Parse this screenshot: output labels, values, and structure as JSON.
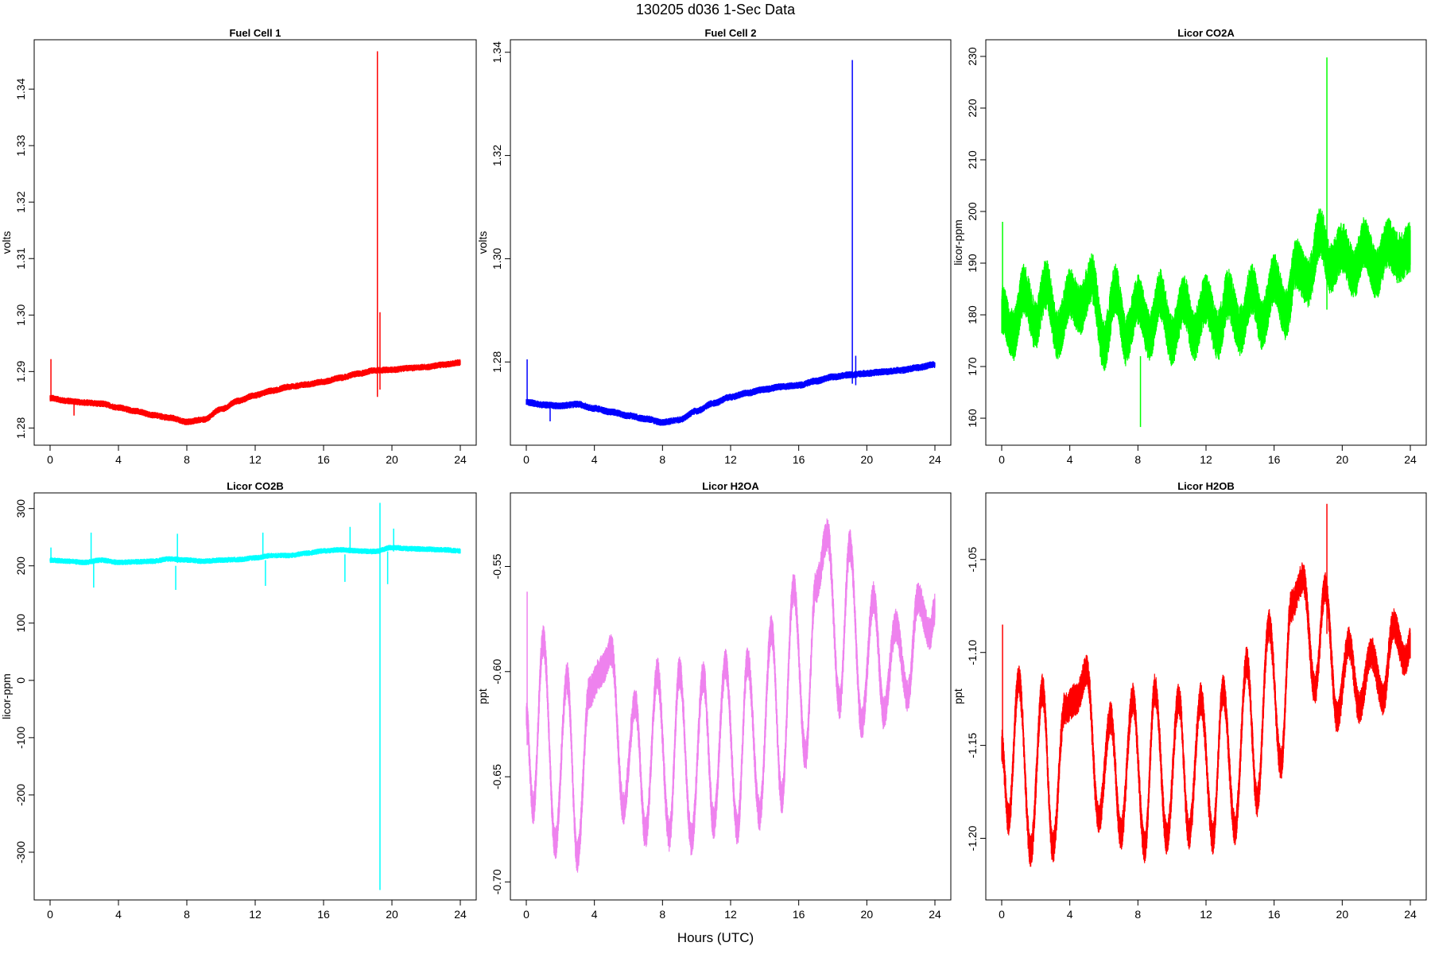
{
  "figure": {
    "title": "130205   d036   1-Sec Data",
    "xlabel": "Hours (UTC)"
  },
  "chart_data": [
    {
      "type": "line",
      "title": "Fuel Cell 1",
      "ylabel": "volts",
      "color": "#ff0000",
      "xlim": [
        0,
        24
      ],
      "ylim": [
        1.2778,
        1.3479
      ],
      "xticks": [
        0,
        4,
        8,
        12,
        16,
        20,
        24
      ],
      "yticks": [
        1.28,
        1.29,
        1.3,
        1.31,
        1.32,
        1.33,
        1.34
      ],
      "ytick_labels": [
        "1.28",
        "1.29",
        "1.30",
        "1.31",
        "1.32",
        "1.33",
        "1.34"
      ],
      "noise": 0.0006,
      "x": [
        0,
        1,
        2,
        3,
        4,
        5,
        6,
        7,
        8,
        9,
        10,
        11,
        12,
        13,
        14,
        15,
        16,
        17,
        18,
        19,
        20,
        21,
        22,
        23,
        24
      ],
      "y": [
        1.2853,
        1.2848,
        1.2845,
        1.2843,
        1.2836,
        1.283,
        1.2823,
        1.2818,
        1.2811,
        1.2815,
        1.2833,
        1.2848,
        1.2858,
        1.2866,
        1.2873,
        1.2877,
        1.2882,
        1.2889,
        1.2896,
        1.2902,
        1.2903,
        1.2906,
        1.2908,
        1.2912,
        1.2916
      ],
      "spikes": [
        {
          "x": 0.05,
          "min": 1.2852,
          "max": 1.2922
        },
        {
          "x": 1.4,
          "min": 1.2822,
          "max": 1.2852
        },
        {
          "x": 19.15,
          "min": 1.2855,
          "max": 1.3467
        },
        {
          "x": 19.3,
          "min": 1.2868,
          "max": 1.3005
        }
      ]
    },
    {
      "type": "line",
      "title": "Fuel Cell 2",
      "ylabel": "volts",
      "color": "#0000ff",
      "xlim": [
        0,
        24
      ],
      "ylim": [
        1.2648,
        1.3415
      ],
      "xticks": [
        0,
        4,
        8,
        12,
        16,
        20,
        24
      ],
      "yticks": [
        1.28,
        1.3,
        1.32,
        1.34
      ],
      "ytick_labels": [
        "1.28",
        "1.30",
        "1.32",
        "1.34"
      ],
      "noise": 0.0007,
      "x": [
        0,
        1,
        2,
        3,
        4,
        5,
        6,
        7,
        8,
        9,
        10,
        11,
        12,
        13,
        14,
        15,
        16,
        17,
        18,
        19,
        20,
        21,
        22,
        23,
        24
      ],
      "y": [
        1.2722,
        1.2717,
        1.2715,
        1.2718,
        1.271,
        1.2703,
        1.2696,
        1.269,
        1.2683,
        1.2688,
        1.2705,
        1.272,
        1.2732,
        1.274,
        1.2747,
        1.2752,
        1.2755,
        1.2763,
        1.2771,
        1.2775,
        1.2778,
        1.2781,
        1.2784,
        1.2789,
        1.2795
      ],
      "spikes": [
        {
          "x": 0.05,
          "min": 1.272,
          "max": 1.2805
        },
        {
          "x": 1.4,
          "min": 1.2685,
          "max": 1.2722
        },
        {
          "x": 19.15,
          "min": 1.2758,
          "max": 1.3385
        },
        {
          "x": 19.35,
          "min": 1.2755,
          "max": 1.2812
        }
      ]
    },
    {
      "type": "line",
      "title": "Licor CO2A",
      "ylabel": "licor-ppm",
      "color": "#00ff00",
      "xlim": [
        0,
        24
      ],
      "ylim": [
        155.7,
        232.3
      ],
      "xticks": [
        0,
        4,
        8,
        12,
        16,
        20,
        24
      ],
      "yticks": [
        160,
        170,
        180,
        190,
        200,
        210,
        220,
        230
      ],
      "ytick_labels": [
        "160",
        "170",
        "180",
        "190",
        "200",
        "210",
        "220",
        "230"
      ],
      "noise": 5,
      "x": [
        0,
        0.7,
        1.3,
        2.0,
        2.6,
        3.3,
        4.0,
        4.6,
        5.3,
        6.0,
        6.7,
        7.3,
        8.0,
        8.7,
        9.3,
        10.0,
        10.7,
        11.3,
        12.0,
        12.7,
        13.3,
        14.0,
        14.7,
        15.3,
        16.0,
        16.7,
        17.3,
        18.0,
        18.7,
        19.3,
        20.0,
        20.7,
        21.3,
        22.0,
        22.7,
        23.3,
        24.0
      ],
      "y": [
        181,
        176,
        185,
        178,
        186,
        176,
        184,
        181,
        187,
        174,
        185,
        175,
        183,
        176,
        184,
        175,
        183,
        176,
        183,
        176,
        184,
        177,
        185,
        178,
        187,
        180,
        190,
        186,
        196,
        189,
        193,
        188,
        194,
        188,
        194,
        191,
        193
      ],
      "spikes": [
        {
          "x": 0.05,
          "min": 178,
          "max": 198
        },
        {
          "x": 8.15,
          "min": 158.3,
          "max": 172
        },
        {
          "x": 19.1,
          "min": 181,
          "max": 229.8
        }
      ]
    },
    {
      "type": "line",
      "title": "Licor CO2B",
      "ylabel": "licor-ppm",
      "color": "#00ffff",
      "xlim": [
        0,
        24
      ],
      "ylim": [
        -375,
        319
      ],
      "xticks": [
        0,
        4,
        8,
        12,
        16,
        20,
        24
      ],
      "yticks": [
        -300,
        -200,
        -100,
        0,
        100,
        200,
        300
      ],
      "ytick_labels": [
        "-300",
        "-200",
        "-100",
        "0",
        "100",
        "200",
        "300"
      ],
      "noise": 5,
      "x": [
        0,
        1,
        2,
        3,
        4,
        5,
        6,
        7,
        8,
        9,
        10,
        11,
        12,
        13,
        14,
        15,
        16,
        17,
        18,
        19,
        20,
        21,
        22,
        23,
        24
      ],
      "y": [
        210,
        208,
        206,
        210,
        206,
        207,
        208,
        212,
        210,
        208,
        210,
        211,
        214,
        218,
        218,
        222,
        226,
        228,
        226,
        225,
        232,
        230,
        229,
        228,
        226
      ],
      "spikes": [
        {
          "x": 0.05,
          "min": 205,
          "max": 232
        },
        {
          "x": 2.4,
          "min": 208,
          "max": 258
        },
        {
          "x": 2.55,
          "min": 162,
          "max": 205
        },
        {
          "x": 7.45,
          "min": 205,
          "max": 256
        },
        {
          "x": 7.35,
          "min": 158,
          "max": 200
        },
        {
          "x": 12.45,
          "min": 212,
          "max": 258
        },
        {
          "x": 12.6,
          "min": 165,
          "max": 210
        },
        {
          "x": 17.25,
          "min": 172,
          "max": 220
        },
        {
          "x": 17.55,
          "min": 225,
          "max": 268
        },
        {
          "x": 19.3,
          "min": -366,
          "max": 310
        },
        {
          "x": 19.75,
          "min": 168,
          "max": 225
        },
        {
          "x": 20.1,
          "min": 225,
          "max": 265
        }
      ]
    },
    {
      "type": "line",
      "title": "Licor H2OA",
      "ylabel": "ppt",
      "color": "#ee82ee",
      "xlim": [
        0,
        24
      ],
      "ylim": [
        -0.7063,
        -0.5173
      ],
      "xticks": [
        0,
        4,
        8,
        12,
        16,
        20,
        24
      ],
      "yticks": [
        -0.7,
        -0.65,
        -0.6,
        -0.55
      ],
      "ytick_labels": [
        "-0.70",
        "-0.65",
        "-0.60",
        "-0.55"
      ],
      "noise": 0.008,
      "x": [
        0,
        0.4,
        1.0,
        1.7,
        2.4,
        3.0,
        3.7,
        4.4,
        5.0,
        5.7,
        6.4,
        7.0,
        7.7,
        8.4,
        9.0,
        9.7,
        10.4,
        11.0,
        11.7,
        12.4,
        13.0,
        13.7,
        14.4,
        15.0,
        15.7,
        16.4,
        17.0,
        17.7,
        18.4,
        19.0,
        19.7,
        20.4,
        21.0,
        21.7,
        22.4,
        23.0,
        23.7,
        24.0
      ],
      "y": [
        -0.62,
        -0.665,
        -0.585,
        -0.682,
        -0.603,
        -0.688,
        -0.61,
        -0.6,
        -0.59,
        -0.665,
        -0.615,
        -0.677,
        -0.601,
        -0.678,
        -0.6,
        -0.68,
        -0.602,
        -0.672,
        -0.597,
        -0.675,
        -0.595,
        -0.668,
        -0.58,
        -0.66,
        -0.56,
        -0.64,
        -0.56,
        -0.535,
        -0.615,
        -0.54,
        -0.625,
        -0.565,
        -0.62,
        -0.578,
        -0.612,
        -0.565,
        -0.582,
        -0.57
      ],
      "spikes": [
        {
          "x": 0.05,
          "min": -0.635,
          "max": -0.562
        }
      ]
    },
    {
      "type": "line",
      "title": "Licor H2OB",
      "ylabel": "ppt",
      "color": "#ff0000",
      "xlim": [
        0,
        24
      ],
      "ylim": [
        -1.2306,
        -1.0167
      ],
      "xticks": [
        0,
        4,
        8,
        12,
        16,
        20,
        24
      ],
      "yticks": [
        -1.2,
        -1.15,
        -1.1,
        -1.05
      ],
      "ytick_labels": [
        "-1.20",
        "-1.15",
        "-1.10",
        "-1.05"
      ],
      "noise": 0.009,
      "x": [
        0,
        0.4,
        1.0,
        1.7,
        2.4,
        3.0,
        3.7,
        4.4,
        5.0,
        5.7,
        6.4,
        7.0,
        7.7,
        8.4,
        9.0,
        9.7,
        10.4,
        11.0,
        11.7,
        12.4,
        13.0,
        13.7,
        14.4,
        15.0,
        15.7,
        16.4,
        17.0,
        17.7,
        18.4,
        19.0,
        19.7,
        20.4,
        21.0,
        21.7,
        22.4,
        23.0,
        23.7,
        24.0
      ],
      "y": [
        -1.15,
        -1.19,
        -1.115,
        -1.207,
        -1.12,
        -1.205,
        -1.13,
        -1.125,
        -1.11,
        -1.19,
        -1.135,
        -1.198,
        -1.125,
        -1.205,
        -1.12,
        -1.2,
        -1.125,
        -1.198,
        -1.125,
        -1.2,
        -1.12,
        -1.195,
        -1.105,
        -1.18,
        -1.085,
        -1.16,
        -1.075,
        -1.06,
        -1.12,
        -1.065,
        -1.135,
        -1.095,
        -1.13,
        -1.1,
        -1.125,
        -1.085,
        -1.105,
        -1.095
      ],
      "spikes": [
        {
          "x": 0.05,
          "min": -1.16,
          "max": -1.085
        },
        {
          "x": 19.1,
          "min": -1.09,
          "max": -1.02
        }
      ]
    }
  ]
}
